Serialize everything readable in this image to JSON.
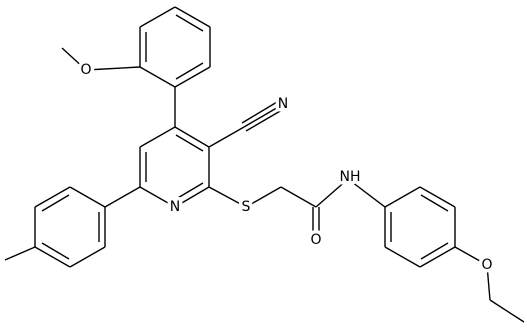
{
  "atoms": {
    "labels": [
      "O",
      "N",
      "N",
      "S",
      "O",
      "NH",
      "O"
    ]
  }
}
